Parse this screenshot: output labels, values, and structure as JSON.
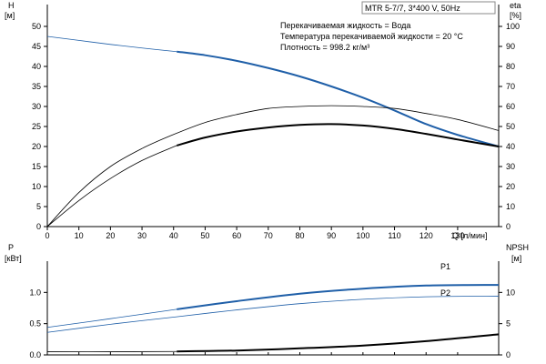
{
  "chart_data": [
    {
      "type": "line",
      "title": "MTR 5-7/7, 3*400 V, 50Hz",
      "info_lines": [
        "Перекачиваемая жидкость = Вода",
        "Температура перекачиваемой жидкости = 20 °C",
        "Плотность = 998.2 кг/м³"
      ],
      "xlabel": "Q [л/мин]",
      "x_ticks": [
        0,
        10,
        20,
        30,
        40,
        50,
        60,
        70,
        80,
        90,
        100,
        110,
        120,
        130
      ],
      "xlim": [
        0,
        143
      ],
      "ylabel_left": [
        "H",
        "[м]"
      ],
      "ylim_left": [
        0,
        50
      ],
      "yticks_left": [
        0,
        5,
        10,
        15,
        20,
        25,
        30,
        35,
        40,
        45,
        50
      ],
      "ylabel_right": [
        "eta",
        "[%]"
      ],
      "ylim_right": [
        0,
        100
      ],
      "yticks_right": [
        0,
        10,
        20,
        30,
        40,
        50,
        60,
        70,
        80,
        90,
        100
      ],
      "grid": false,
      "series": [
        {
          "axis": "left",
          "color": "#1f5fa8",
          "thin_range": [
            0,
            41
          ],
          "x": [
            0,
            10,
            20,
            30,
            41,
            50,
            60,
            70,
            80,
            90,
            100,
            110,
            120,
            130,
            143
          ],
          "y": [
            47.5,
            46.5,
            45.5,
            44.6,
            43.7,
            42.8,
            41.4,
            39.6,
            37.5,
            35.0,
            32.2,
            29.0,
            25.6,
            22.9,
            20.0
          ]
        },
        {
          "axis": "right",
          "color": "#000000",
          "thin_range": [
            0,
            143
          ],
          "x": [
            0,
            10,
            20,
            30,
            40,
            50,
            60,
            70,
            80,
            90,
            100,
            110,
            120,
            130,
            143
          ],
          "y": [
            0,
            17,
            30,
            39,
            46,
            52,
            56,
            59,
            60,
            60.4,
            60,
            59,
            56.5,
            53.5,
            48
          ]
        },
        {
          "axis": "right",
          "color": "#000000",
          "thin_range": [
            0,
            41
          ],
          "x": [
            0,
            10,
            20,
            30,
            41,
            50,
            60,
            70,
            80,
            90,
            100,
            110,
            120,
            130,
            143
          ],
          "y": [
            0,
            13,
            24,
            33,
            40.5,
            44.5,
            47.5,
            49.5,
            50.8,
            51.2,
            50.5,
            48.8,
            46.3,
            43.5,
            40
          ]
        }
      ]
    },
    {
      "type": "line",
      "xlim": [
        0,
        143
      ],
      "ylabel_left": [
        "P",
        "[кВт]"
      ],
      "ylim_left": [
        0,
        1.5
      ],
      "yticks_left": [
        "0.0",
        "0.5",
        "1.0"
      ],
      "ylabel_right": [
        "NPSH",
        "[м]"
      ],
      "ylim_right": [
        0,
        15
      ],
      "yticks_right": [
        "0",
        "5",
        "10"
      ],
      "grid": false,
      "series": [
        {
          "name": "P1",
          "axis": "left",
          "color": "#1f5fa8",
          "thin_range": [
            0,
            41
          ],
          "x": [
            0,
            20,
            41,
            60,
            80,
            100,
            120,
            143
          ],
          "y": [
            0.44,
            0.58,
            0.73,
            0.86,
            0.98,
            1.06,
            1.11,
            1.12
          ]
        },
        {
          "name": "P2",
          "axis": "left",
          "color": "#1f5fa8",
          "thin_range": [
            0,
            143
          ],
          "x": [
            0,
            20,
            41,
            60,
            80,
            100,
            120,
            143
          ],
          "y": [
            0.36,
            0.49,
            0.61,
            0.72,
            0.82,
            0.89,
            0.93,
            0.94
          ]
        },
        {
          "axis": "right",
          "color": "#000000",
          "thin_range": [
            0,
            41
          ],
          "x": [
            0,
            20,
            41,
            60,
            80,
            100,
            120,
            143
          ],
          "y": [
            0.5,
            0.5,
            0.55,
            0.7,
            1.05,
            1.5,
            2.2,
            3.3
          ]
        }
      ]
    }
  ]
}
